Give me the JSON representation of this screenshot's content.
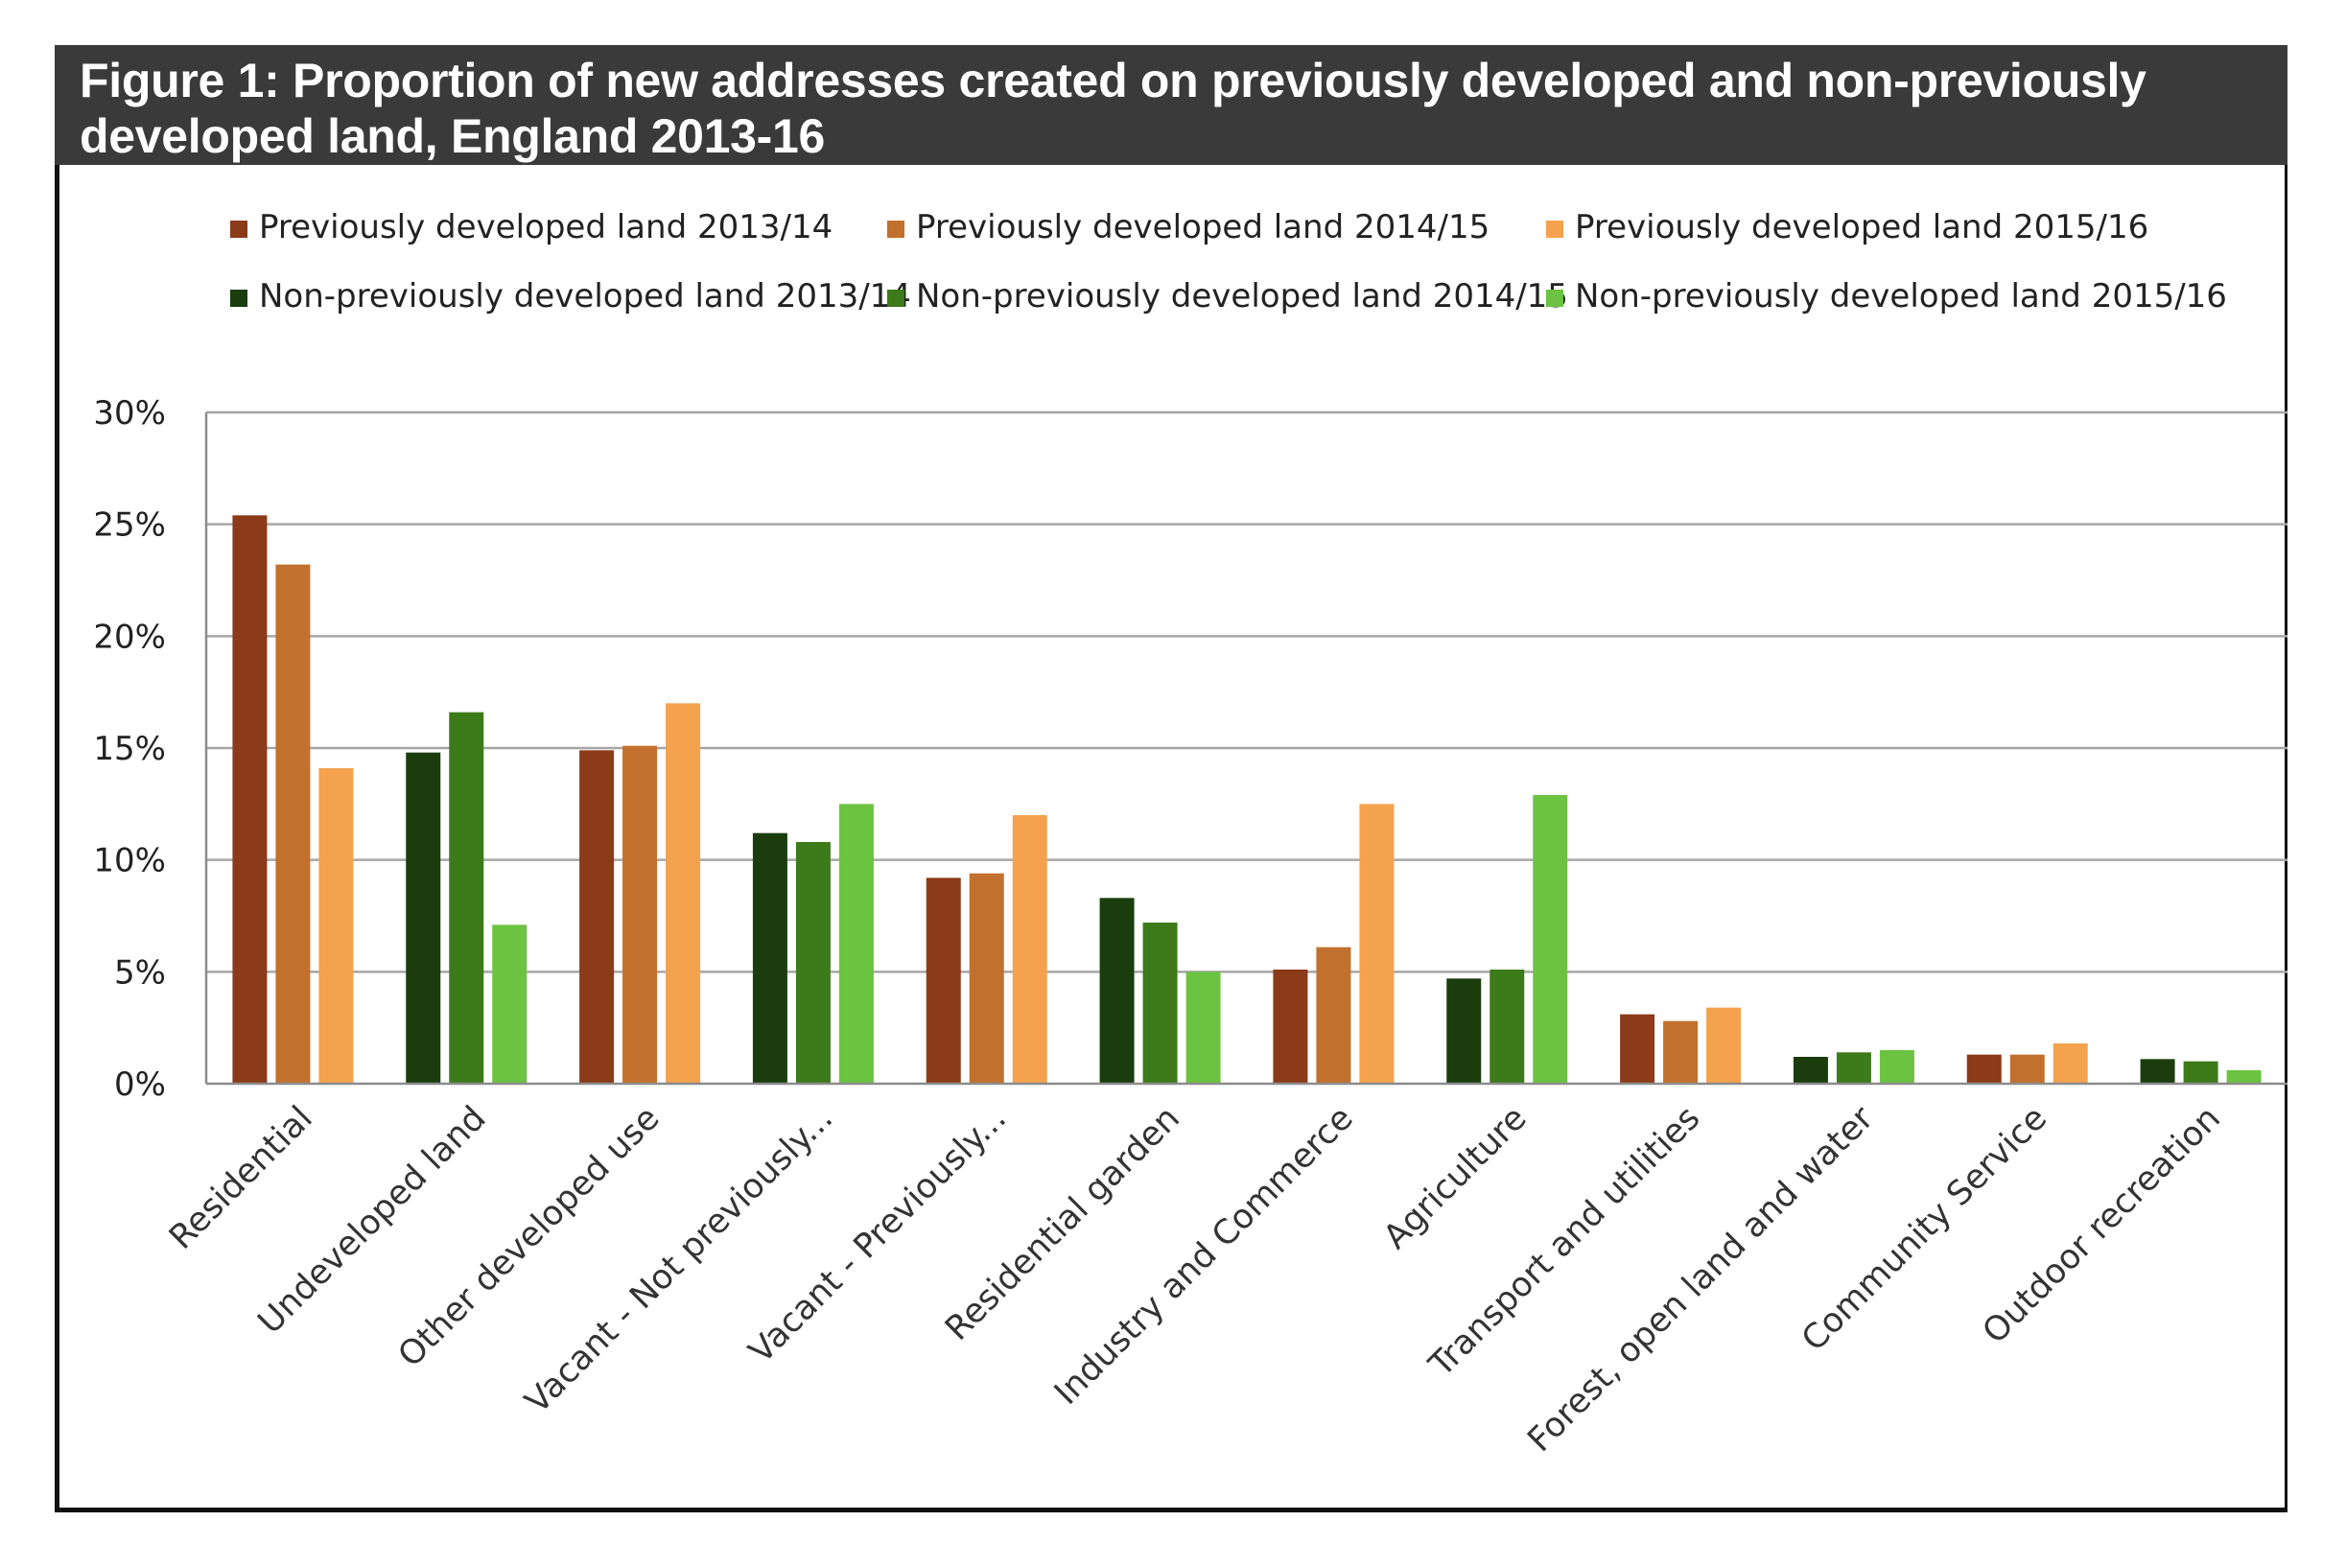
{
  "figure": {
    "title": "Figure  1: Proportion of new addresses created on previously developed and non-previously developed land, England 2013-16"
  },
  "chart_data": {
    "type": "bar",
    "title": "Figure  1: Proportion of new addresses created on previously developed and non-previously developed land, England 2013-16",
    "xlabel": "",
    "ylabel": "",
    "ylim": [
      0,
      30
    ],
    "yticks": [
      "0%",
      "5%",
      "10%",
      "15%",
      "20%",
      "25%",
      "30%"
    ],
    "grid": true,
    "legend_position": "top",
    "categories": [
      "Residential",
      "Undeveloped land",
      "Other developed use",
      "Vacant - Not previously...",
      "Vacant - Previously...",
      "Residential garden",
      "Industry and Commerce",
      "Agriculture",
      "Transport and utilities",
      "Forest, open land and water",
      "Community Service",
      "Outdoor recreation"
    ],
    "category_types": [
      "pd",
      "npd",
      "pd",
      "npd",
      "pd",
      "npd",
      "pd",
      "npd",
      "pd",
      "npd",
      "pd",
      "npd"
    ],
    "series": [
      {
        "name": "Previously developed land 2013/14",
        "group": "pd",
        "year": 0,
        "color": "#8B3A1A",
        "values": [
          25.4,
          null,
          14.9,
          null,
          9.2,
          null,
          5.1,
          null,
          3.1,
          null,
          1.3,
          null
        ]
      },
      {
        "name": "Previously developed land 2014/15",
        "group": "pd",
        "year": 1,
        "color": "#C2702E",
        "values": [
          23.2,
          null,
          15.1,
          null,
          9.4,
          null,
          6.1,
          null,
          2.8,
          null,
          1.3,
          null
        ]
      },
      {
        "name": "Previously developed land 2015/16",
        "group": "pd",
        "year": 2,
        "color": "#F4A24E",
        "values": [
          14.1,
          null,
          17.0,
          null,
          12.0,
          null,
          12.5,
          null,
          3.4,
          null,
          1.8,
          null
        ]
      },
      {
        "name": "Non-previously developed land 2013/14",
        "group": "npd",
        "year": 0,
        "color": "#1B3D0E",
        "values": [
          null,
          14.8,
          null,
          11.2,
          null,
          8.3,
          null,
          4.7,
          null,
          1.2,
          null,
          1.1
        ]
      },
      {
        "name": "Non-previously developed land 2014/15",
        "group": "npd",
        "year": 1,
        "color": "#3C7A1A",
        "values": [
          null,
          16.6,
          null,
          10.8,
          null,
          7.2,
          null,
          5.1,
          null,
          1.4,
          null,
          1.0
        ]
      },
      {
        "name": "Non-previously developed land 2015/16",
        "group": "npd",
        "year": 2,
        "color": "#6CC241",
        "values": [
          null,
          7.1,
          null,
          12.5,
          null,
          5.0,
          null,
          12.9,
          null,
          1.5,
          null,
          0.6
        ]
      }
    ]
  }
}
